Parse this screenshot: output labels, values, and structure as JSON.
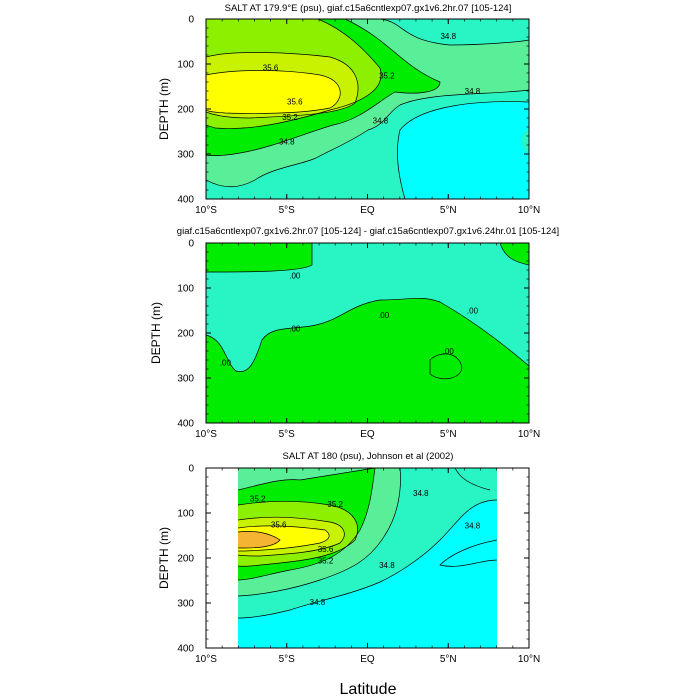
{
  "chart_data": [
    {
      "type": "contour",
      "title": "SALT AT 179.9°E (psu), giaf.c15a6cntlexp07.gx1v6.2hr.07 [105-124]",
      "ylabel": "DEPTH (m)",
      "xlabel": "",
      "xlim": [
        -10,
        10
      ],
      "ylim": [
        0,
        400
      ],
      "x_ticks": [
        "10°S",
        "5°S",
        "EQ",
        "5°N",
        "10°N"
      ],
      "y_ticks": [
        "0",
        "100",
        "200",
        "300",
        "400"
      ],
      "contour_levels": [
        34.8,
        35.0,
        35.2,
        35.4,
        35.6
      ],
      "contour_labels": [
        {
          "text": "35.6",
          "x": -6.0,
          "y": 108
        },
        {
          "text": "35.6",
          "x": -4.5,
          "y": 183
        },
        {
          "text": "35.2",
          "x": -4.8,
          "y": 218
        },
        {
          "text": "34.8",
          "x": -5.0,
          "y": 272
        },
        {
          "text": "35.2",
          "x": 1.2,
          "y": 125
        },
        {
          "text": "34.8",
          "x": 0.8,
          "y": 225
        },
        {
          "text": "34.8",
          "x": 5.0,
          "y": 38
        },
        {
          "text": "34.8",
          "x": 6.5,
          "y": 160
        }
      ]
    },
    {
      "type": "contour",
      "title": "giaf.c15a6cntlexp07.gx1v6.2hr.07 [105-124] - giaf.c15a6cntlexp07.gx1v6.24hr.01 [105-124]",
      "ylabel": "DEPTH (m)",
      "xlabel": "",
      "xlim": [
        -10,
        10
      ],
      "ylim": [
        0,
        400
      ],
      "x_ticks": [
        "10°S",
        "5°S",
        "EQ",
        "5°N",
        "10°N"
      ],
      "y_ticks": [
        "0",
        "100",
        "200",
        "300",
        "400"
      ],
      "contour_levels": [
        0.0
      ],
      "contour_labels": [
        {
          "text": ".00",
          "x": -4.5,
          "y": 72
        },
        {
          "text": ".00",
          "x": -4.5,
          "y": 190
        },
        {
          "text": ".00",
          "x": -8.8,
          "y": 265
        },
        {
          "text": ".00",
          "x": 1.0,
          "y": 160
        },
        {
          "text": ".00",
          "x": 6.5,
          "y": 150
        },
        {
          "text": ".00",
          "x": 5.0,
          "y": 240
        }
      ]
    },
    {
      "type": "contour",
      "title": "SALT AT 180 (psu), Johnson et al (2002)",
      "ylabel": "DEPTH (m)",
      "xlabel": "Latitude",
      "xlim": [
        -10,
        10
      ],
      "ylim": [
        0,
        400
      ],
      "data_xlim": [
        -8,
        8
      ],
      "x_ticks": [
        "10°S",
        "5°S",
        "EQ",
        "5°N",
        "10°N"
      ],
      "y_ticks": [
        "0",
        "100",
        "200",
        "300",
        "400"
      ],
      "contour_levels": [
        34.8,
        35.0,
        35.2,
        35.4,
        35.6,
        35.8
      ],
      "contour_labels": [
        {
          "text": "35.2",
          "x": -6.8,
          "y": 68
        },
        {
          "text": "35.6",
          "x": -5.5,
          "y": 125
        },
        {
          "text": "35.6",
          "x": -2.6,
          "y": 180
        },
        {
          "text": "35.2",
          "x": -2.6,
          "y": 205
        },
        {
          "text": "34.8",
          "x": -3.1,
          "y": 298
        },
        {
          "text": "35.2",
          "x": -2.0,
          "y": 80
        },
        {
          "text": "34.8",
          "x": 1.2,
          "y": 215
        },
        {
          "text": "34.8",
          "x": 3.3,
          "y": 55
        },
        {
          "text": "34.8",
          "x": 6.5,
          "y": 128
        }
      ]
    }
  ],
  "colors": {
    "cyan": "#00ffff",
    "aquamarine": "#29f5c4",
    "mint": "#59ef98",
    "green": "#00ec00",
    "lightgreen": "#8df000",
    "yellowgreen": "#c8f200",
    "yellow": "#ffff00",
    "orange": "#f5b431"
  }
}
